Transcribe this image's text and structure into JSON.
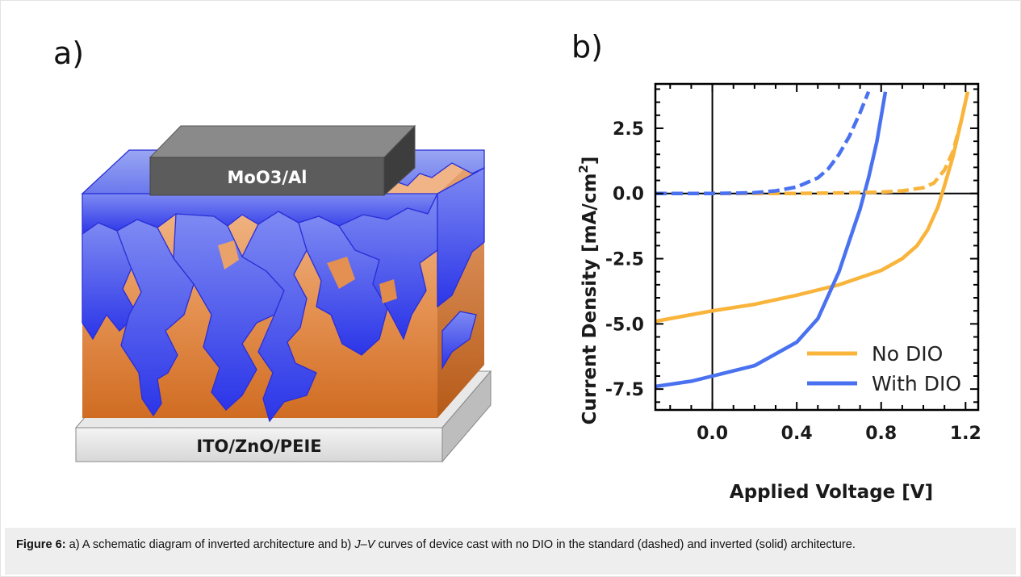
{
  "panels": {
    "a": {
      "label": "a)",
      "top_layer": "MoO3/Al",
      "bottom_layer": "ITO/ZnO/PEIE"
    },
    "b": {
      "label": "b)"
    }
  },
  "chart_data": {
    "type": "line",
    "title": "",
    "xlabel": "Applied Voltage [V]",
    "ylabel_main": "Current Density [mA/cm",
    "ylabel_sup": "2",
    "ylabel_end": "]",
    "xlim": [
      -0.27,
      1.26
    ],
    "ylim": [
      -8.3,
      4.2
    ],
    "x_ticks": [
      0.0,
      0.4,
      0.8,
      1.2
    ],
    "x_tick_labels": [
      "0.0",
      "0.4",
      "0.8",
      "1.2"
    ],
    "y_ticks": [
      2.5,
      0.0,
      -2.5,
      -5.0,
      -7.5
    ],
    "y_tick_labels": [
      "2.5",
      "0.0",
      "-2.5",
      "-5.0",
      "-7.5"
    ],
    "legend_placement": "bottom-right",
    "colors": {
      "no_dio": "#F9B43C",
      "with_dio": "#4A72F0"
    },
    "series": [
      {
        "name": "No DIO",
        "style": "solid",
        "color": "#F9B43C",
        "x": [
          -0.27,
          -0.1,
          0.0,
          0.2,
          0.4,
          0.6,
          0.8,
          0.9,
          0.97,
          1.02,
          1.07,
          1.1,
          1.14,
          1.18,
          1.21
        ],
        "y": [
          -4.9,
          -4.65,
          -4.5,
          -4.25,
          -3.9,
          -3.5,
          -2.95,
          -2.5,
          -2.0,
          -1.4,
          -0.5,
          0.3,
          1.4,
          2.8,
          3.9
        ]
      },
      {
        "name": "With DIO",
        "style": "solid",
        "color": "#4A72F0",
        "x": [
          -0.27,
          -0.1,
          0.0,
          0.2,
          0.4,
          0.5,
          0.6,
          0.65,
          0.7,
          0.74,
          0.78,
          0.82
        ],
        "y": [
          -7.4,
          -7.2,
          -7.0,
          -6.6,
          -5.7,
          -4.8,
          -3.0,
          -1.8,
          -0.6,
          0.6,
          2.0,
          3.9
        ]
      },
      {
        "name": "",
        "style": "dashed",
        "color": "#F9B43C",
        "x": [
          -0.27,
          0.2,
          0.4,
          0.6,
          0.8,
          0.9,
          1.0,
          1.05,
          1.1,
          1.14,
          1.18,
          1.21
        ],
        "y": [
          0.0,
          0.0,
          0.0,
          0.02,
          0.05,
          0.1,
          0.22,
          0.4,
          0.9,
          1.6,
          2.8,
          3.9
        ]
      },
      {
        "name": "",
        "style": "dashed",
        "color": "#4A72F0",
        "x": [
          -0.27,
          0.0,
          0.1,
          0.2,
          0.3,
          0.4,
          0.5,
          0.55,
          0.6,
          0.65,
          0.7,
          0.74
        ],
        "y": [
          0.0,
          0.0,
          0.01,
          0.03,
          0.1,
          0.25,
          0.6,
          0.95,
          1.5,
          2.2,
          3.1,
          3.9
        ]
      }
    ]
  },
  "caption": {
    "figure_label": "Figure 6:",
    "seg1": " a) A schematic diagram of inverted architecture and b) ",
    "jv": "J–V",
    "seg2": " curves of device cast with no DIO in the standard (dashed) and inverted (solid) architecture."
  }
}
